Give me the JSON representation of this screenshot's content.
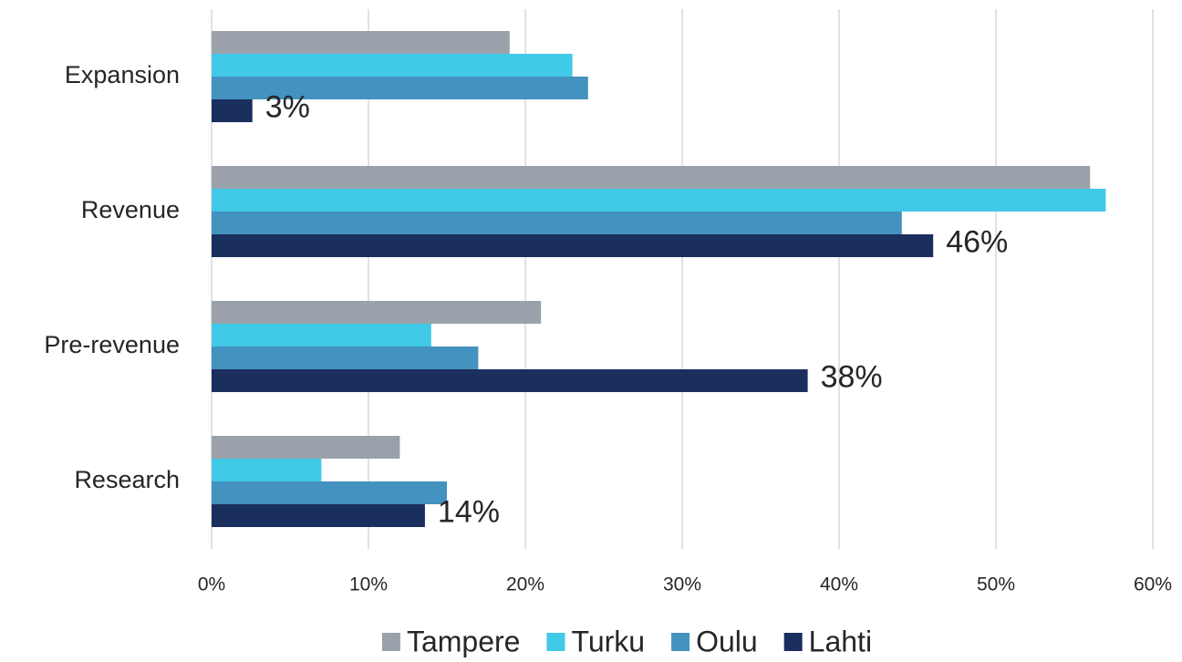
{
  "chart_data": {
    "type": "bar",
    "orientation": "horizontal",
    "categories": [
      "Expansion",
      "Revenue",
      "Pre-revenue",
      "Research"
    ],
    "series": [
      {
        "name": "Tampere",
        "color": "#9aa1aa",
        "values": [
          19,
          56,
          21,
          12
        ]
      },
      {
        "name": "Turku",
        "color": "#41c9e8",
        "values": [
          23,
          57,
          14,
          7
        ]
      },
      {
        "name": "Oulu",
        "color": "#4392bf",
        "values": [
          24,
          44,
          17,
          15
        ]
      },
      {
        "name": "Lahti",
        "color": "#1b2f5e",
        "values": [
          2.6,
          46,
          38,
          13.6
        ],
        "value_labels": [
          "3%",
          "46%",
          "38%",
          "14%"
        ]
      }
    ],
    "xlim": [
      0,
      60
    ],
    "xticks": [
      {
        "value": 0,
        "label": "0%"
      },
      {
        "value": 10,
        "label": "10%"
      },
      {
        "value": 20,
        "label": "20%"
      },
      {
        "value": 30,
        "label": "30%"
      },
      {
        "value": 40,
        "label": "40%"
      },
      {
        "value": 50,
        "label": "50%"
      },
      {
        "value": 60,
        "label": "60%"
      }
    ],
    "grid": true,
    "legend": "bottom"
  }
}
